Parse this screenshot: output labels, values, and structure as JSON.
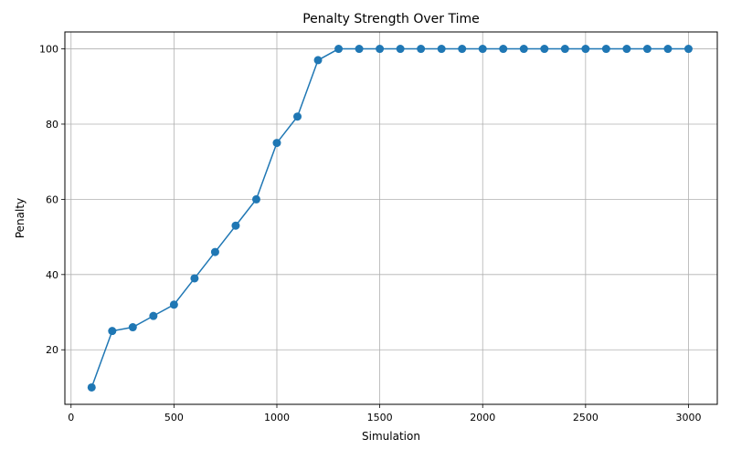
{
  "chart_data": {
    "type": "line",
    "title": "Penalty Strength Over Time",
    "xlabel": "Simulation",
    "ylabel": "Penalty",
    "xlim": [
      -30,
      3140
    ],
    "ylim": [
      5.5,
      104.5
    ],
    "xticks": [
      0,
      500,
      1000,
      1500,
      2000,
      2500,
      3000
    ],
    "yticks": [
      20,
      40,
      60,
      80,
      100
    ],
    "grid": true,
    "line_color": "#1f77b4",
    "marker": "circle",
    "series": [
      {
        "x": [
          100,
          200,
          300,
          400,
          500,
          600,
          700,
          800,
          900,
          1000,
          1100,
          1200,
          1300,
          1400,
          1500,
          1600,
          1700,
          1800,
          1900,
          2000,
          2100,
          2200,
          2300,
          2400,
          2500,
          2600,
          2700,
          2800,
          2900,
          3000
        ],
        "values": [
          10,
          25,
          26,
          29,
          32,
          39,
          46,
          53,
          60,
          75,
          82,
          97,
          100,
          100,
          100,
          100,
          100,
          100,
          100,
          100,
          100,
          100,
          100,
          100,
          100,
          100,
          100,
          100,
          100,
          100
        ]
      }
    ]
  }
}
